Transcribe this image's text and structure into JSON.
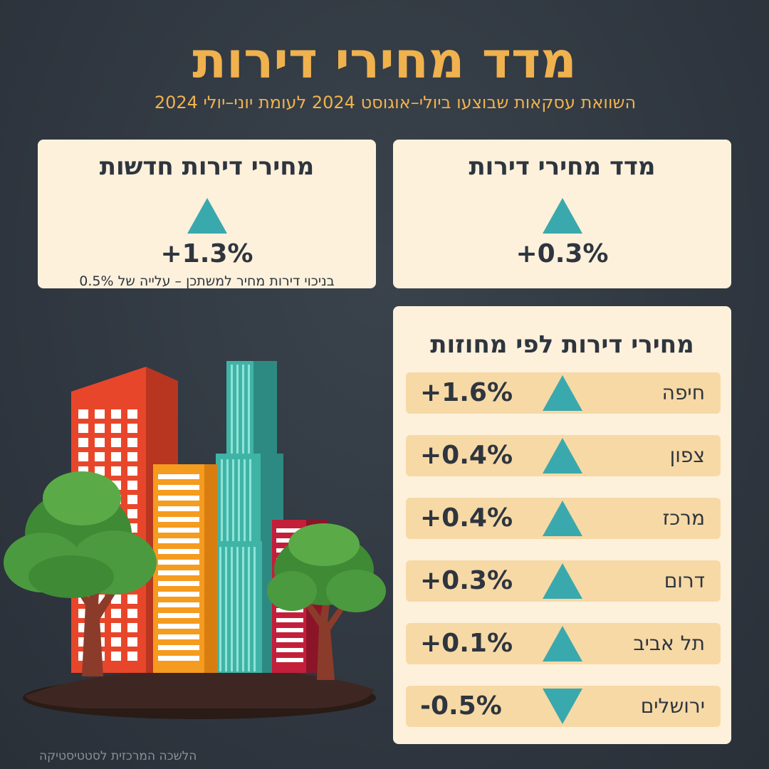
{
  "title": "מדד מחירי דירות",
  "subtitle": "השוואת עסקאות שבוצעו ביולי–אוגוסט 2024 לעומת יוני–יולי 2024",
  "cards": {
    "index": {
      "title": "מדד מחירי דירות",
      "value": "+0.3%",
      "direction": "up",
      "icon": "triangle-up-icon"
    },
    "new_dwellings": {
      "title": "מחירי דירות חדשות",
      "value": "+1.3%",
      "direction": "up",
      "icon": "triangle-up-icon",
      "note": "בניכוי דירות מחיר למשתכן – עלייה של 0.5%"
    }
  },
  "districts": {
    "title": "מחירי דירות לפי מחוזות",
    "items": [
      {
        "name": "חיפה",
        "value": "+1.6%",
        "direction": "up"
      },
      {
        "name": "צפון",
        "value": "+0.4%",
        "direction": "up"
      },
      {
        "name": "מרכז",
        "value": "+0.4%",
        "direction": "up"
      },
      {
        "name": "דרום",
        "value": "+0.3%",
        "direction": "up"
      },
      {
        "name": "תל אביב",
        "value": "+0.1%",
        "direction": "up"
      },
      {
        "name": "ירושלים",
        "value": "-0.5%",
        "direction": "down"
      }
    ]
  },
  "chart_data": {
    "type": "table",
    "title": "מחירי דירות לפי מחוזות",
    "categories": [
      "חיפה",
      "צפון",
      "מרכז",
      "דרום",
      "תל אביב",
      "ירושלים"
    ],
    "values": [
      1.6,
      0.4,
      0.4,
      0.3,
      0.1,
      -0.5
    ],
    "unit": "%"
  },
  "source": "הלשכה המרכזית לסטטיסטיקה",
  "colors": {
    "background": "#2e353e",
    "accent": "#f0b24e",
    "card": "#fdf1dc",
    "row": "#f7d9a6",
    "triangle": "#3aa9ad"
  },
  "illustration": {
    "icon": "buildings-and-trees-illustration"
  }
}
